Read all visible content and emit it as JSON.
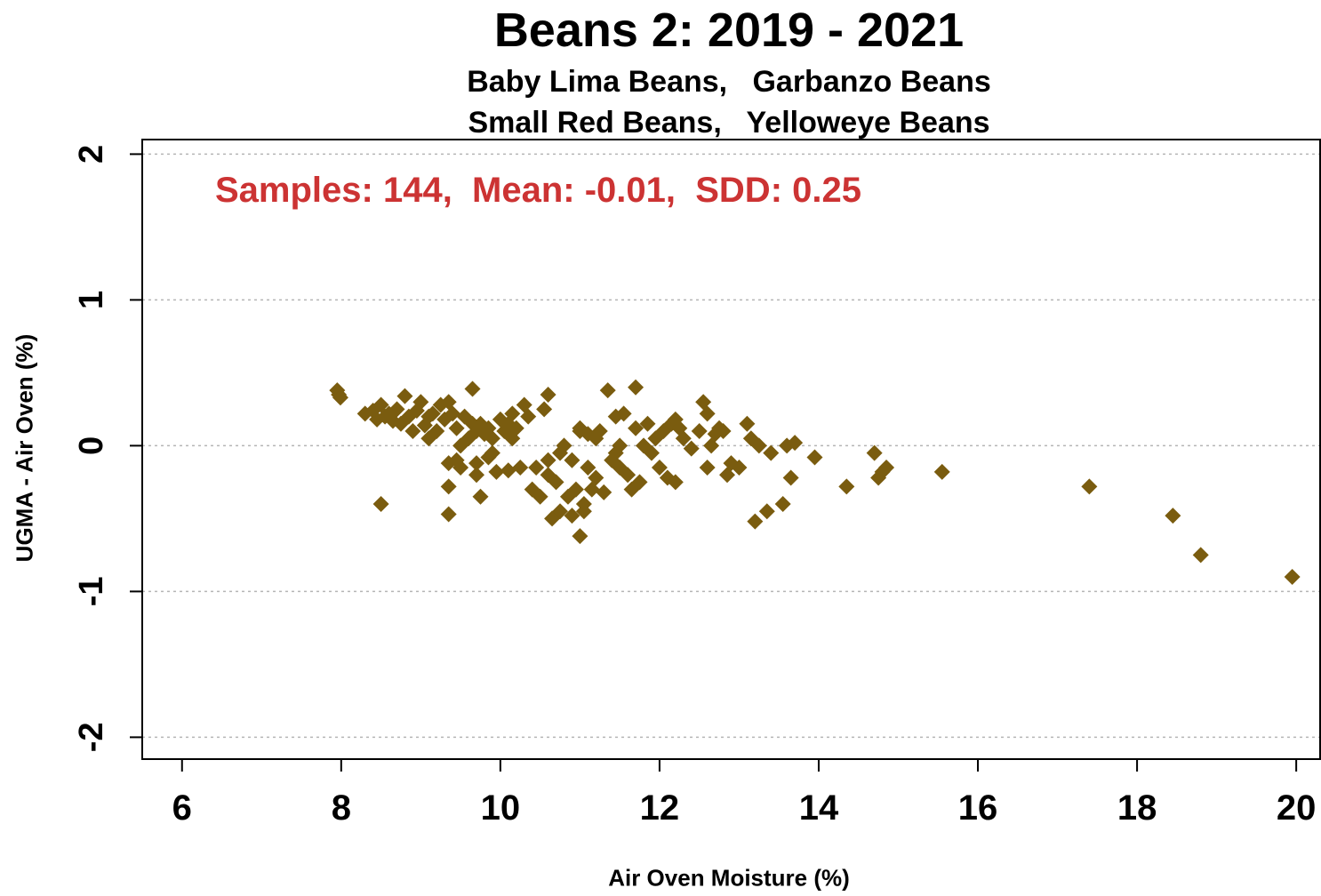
{
  "chart_data": {
    "type": "scatter",
    "title": "Beans 2: 2019 - 2021",
    "subtitle_lines": [
      "Baby Lima Beans,   Garbanzo Beans",
      "Small Red Beans,   Yelloweye Beans"
    ],
    "xlabel": "Air Oven Moisture (%)",
    "ylabel": "UGMA - Air Oven (%)",
    "annotation": "Samples: 144,  Mean: -0.01,  SDD: 0.25",
    "annotation_color": "#cc3333",
    "marker_color": "#7a5c0f",
    "xlim": [
      5.5,
      20.3
    ],
    "ylim": [
      -2.15,
      2.1
    ],
    "xticks": [
      "6",
      "8",
      "10",
      "12",
      "14",
      "16",
      "18",
      "20"
    ],
    "yticks": [
      "-2",
      "-1",
      "0",
      "1",
      "2"
    ],
    "grid": "horizontal dotted",
    "points": [
      [
        7.95,
        0.38
      ],
      [
        7.97,
        0.35
      ],
      [
        7.99,
        0.33
      ],
      [
        8.3,
        0.22
      ],
      [
        8.4,
        0.24
      ],
      [
        8.45,
        0.18
      ],
      [
        8.5,
        0.28
      ],
      [
        8.5,
        -0.4
      ],
      [
        8.55,
        0.2
      ],
      [
        8.6,
        0.22
      ],
      [
        8.65,
        0.17
      ],
      [
        8.7,
        0.25
      ],
      [
        8.75,
        0.15
      ],
      [
        8.8,
        0.34
      ],
      [
        8.85,
        0.2
      ],
      [
        8.9,
        0.1
      ],
      [
        8.95,
        0.24
      ],
      [
        9.0,
        0.3
      ],
      [
        9.05,
        0.14
      ],
      [
        9.1,
        0.05
      ],
      [
        9.1,
        0.2
      ],
      [
        9.15,
        0.22
      ],
      [
        9.2,
        0.1
      ],
      [
        9.25,
        0.28
      ],
      [
        9.3,
        0.18
      ],
      [
        9.35,
        0.3
      ],
      [
        9.35,
        -0.12
      ],
      [
        9.35,
        -0.28
      ],
      [
        9.35,
        -0.47
      ],
      [
        9.4,
        0.22
      ],
      [
        9.45,
        -0.1
      ],
      [
        9.45,
        0.12
      ],
      [
        9.5,
        0.0
      ],
      [
        9.5,
        -0.15
      ],
      [
        9.55,
        0.2
      ],
      [
        9.6,
        0.05
      ],
      [
        9.65,
        0.15
      ],
      [
        9.65,
        0.39
      ],
      [
        9.7,
        0.1
      ],
      [
        9.7,
        -0.2
      ],
      [
        9.7,
        -0.12
      ],
      [
        9.75,
        0.15
      ],
      [
        9.75,
        -0.35
      ],
      [
        9.8,
        0.08
      ],
      [
        9.85,
        0.12
      ],
      [
        9.9,
        -0.05
      ],
      [
        9.9,
        0.05
      ],
      [
        9.95,
        -0.18
      ],
      [
        10.0,
        0.18
      ],
      [
        10.05,
        0.1
      ],
      [
        10.1,
        -0.17
      ],
      [
        10.1,
        0.15
      ],
      [
        10.15,
        0.05
      ],
      [
        10.15,
        0.22
      ],
      [
        10.2,
        0.12
      ],
      [
        10.25,
        -0.15
      ],
      [
        10.3,
        0.28
      ],
      [
        10.35,
        0.2
      ],
      [
        10.4,
        -0.3
      ],
      [
        10.45,
        -0.15
      ],
      [
        10.5,
        -0.35
      ],
      [
        10.55,
        0.25
      ],
      [
        10.6,
        0.35
      ],
      [
        10.6,
        -0.1
      ],
      [
        10.6,
        -0.2
      ],
      [
        10.65,
        -0.5
      ],
      [
        10.7,
        -0.25
      ],
      [
        10.75,
        -0.45
      ],
      [
        10.8,
        0.0
      ],
      [
        10.85,
        -0.35
      ],
      [
        10.9,
        -0.1
      ],
      [
        10.9,
        -0.48
      ],
      [
        10.95,
        -0.3
      ],
      [
        11.0,
        0.1
      ],
      [
        11.0,
        0.12
      ],
      [
        11.0,
        -0.62
      ],
      [
        11.05,
        -0.45
      ],
      [
        11.1,
        -0.15
      ],
      [
        11.1,
        0.08
      ],
      [
        11.15,
        -0.3
      ],
      [
        11.2,
        0.05
      ],
      [
        11.2,
        -0.22
      ],
      [
        11.25,
        0.1
      ],
      [
        11.3,
        -0.32
      ],
      [
        11.35,
        0.38
      ],
      [
        11.4,
        -0.1
      ],
      [
        11.45,
        0.2
      ],
      [
        11.45,
        -0.05
      ],
      [
        11.5,
        -0.15
      ],
      [
        11.5,
        0.0
      ],
      [
        11.55,
        0.22
      ],
      [
        11.6,
        -0.2
      ],
      [
        11.65,
        -0.3
      ],
      [
        11.7,
        0.12
      ],
      [
        11.7,
        0.4
      ],
      [
        11.75,
        -0.25
      ],
      [
        11.8,
        0.0
      ],
      [
        11.85,
        0.15
      ],
      [
        11.9,
        -0.05
      ],
      [
        11.95,
        0.05
      ],
      [
        12.0,
        -0.15
      ],
      [
        12.05,
        0.1
      ],
      [
        12.1,
        -0.22
      ],
      [
        12.15,
        0.15
      ],
      [
        12.2,
        0.18
      ],
      [
        12.2,
        -0.25
      ],
      [
        12.3,
        0.05
      ],
      [
        12.4,
        -0.02
      ],
      [
        12.5,
        0.1
      ],
      [
        12.55,
        0.3
      ],
      [
        12.6,
        0.22
      ],
      [
        12.6,
        -0.15
      ],
      [
        12.65,
        0.0
      ],
      [
        12.7,
        0.08
      ],
      [
        12.75,
        0.12
      ],
      [
        12.8,
        0.1
      ],
      [
        12.85,
        -0.2
      ],
      [
        12.9,
        -0.12
      ],
      [
        13.0,
        -0.15
      ],
      [
        13.1,
        0.15
      ],
      [
        13.15,
        0.05
      ],
      [
        13.2,
        -0.52
      ],
      [
        13.25,
        0.0
      ],
      [
        13.35,
        -0.45
      ],
      [
        13.4,
        -0.05
      ],
      [
        13.55,
        -0.4
      ],
      [
        13.6,
        0.0
      ],
      [
        13.65,
        -0.22
      ],
      [
        13.7,
        0.02
      ],
      [
        13.95,
        -0.08
      ],
      [
        14.35,
        -0.28
      ],
      [
        14.7,
        -0.05
      ],
      [
        14.75,
        -0.22
      ],
      [
        14.8,
        -0.18
      ],
      [
        14.85,
        -0.15
      ],
      [
        15.55,
        -0.18
      ],
      [
        17.4,
        -0.28
      ],
      [
        18.45,
        -0.48
      ],
      [
        18.8,
        -0.75
      ],
      [
        19.95,
        -0.9
      ],
      [
        12.25,
        0.12
      ],
      [
        11.05,
        -0.4
      ],
      [
        10.75,
        -0.05
      ],
      [
        9.85,
        -0.08
      ]
    ]
  }
}
